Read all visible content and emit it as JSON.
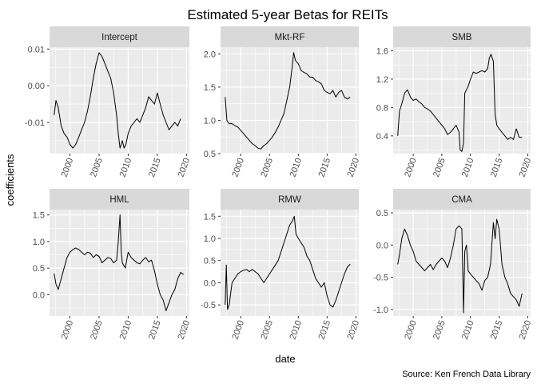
{
  "chart_title": "Estimated 5-year Betas for REITs",
  "xlabel": "date",
  "ylabel": "coefficients",
  "caption": "Source: Ken French Data Library",
  "colors": {
    "panel_bg": "#EBEBEB",
    "strip_bg": "#D9D9D9",
    "grid": "#FFFFFF",
    "line": "#000000",
    "tick_label": "#4D4D4D"
  },
  "chart_data": [
    {
      "type": "line",
      "facet": "Intercept",
      "xlim": [
        1996.5,
        2020.5
      ],
      "ylim": [
        -0.0185,
        0.0105
      ],
      "yticks": [
        0.01,
        0.0,
        -0.01
      ],
      "ytick_labels": [
        "0.01",
        "0.00",
        "-0.01"
      ],
      "xticks": [
        2000,
        2005,
        2010,
        2015,
        2020
      ],
      "xtick_labels": [
        "2000",
        "2005",
        "2010",
        "2015",
        "2020"
      ],
      "x": [
        1997.3,
        1997.6,
        1998,
        1998.5,
        1999,
        1999.5,
        2000,
        2000.5,
        2001,
        2001.5,
        2002,
        2002.5,
        2003,
        2003.5,
        2004,
        2004.5,
        2005,
        2005.5,
        2006,
        2006.5,
        2007,
        2007.5,
        2008,
        2008.3,
        2008.6,
        2009,
        2009.3,
        2009.6,
        2010,
        2010.5,
        2011,
        2011.5,
        2012,
        2012.5,
        2013,
        2013.5,
        2014,
        2014.5,
        2015,
        2015.5,
        2016,
        2016.5,
        2017,
        2017.5,
        2018,
        2018.5,
        2019
      ],
      "values": [
        -0.008,
        -0.004,
        -0.006,
        -0.011,
        -0.013,
        -0.014,
        -0.016,
        -0.017,
        -0.016,
        -0.014,
        -0.012,
        -0.01,
        -0.007,
        -0.003,
        0.002,
        0.006,
        0.009,
        0.008,
        0.006,
        0.004,
        0.002,
        -0.002,
        -0.008,
        -0.013,
        -0.017,
        -0.015,
        -0.017,
        -0.016,
        -0.013,
        -0.011,
        -0.01,
        -0.009,
        -0.01,
        -0.008,
        -0.006,
        -0.003,
        -0.004,
        -0.005,
        -0.002,
        -0.005,
        -0.008,
        -0.01,
        -0.012,
        -0.011,
        -0.01,
        -0.011,
        -0.009
      ]
    },
    {
      "type": "line",
      "facet": "Mkt-RF",
      "xlim": [
        1996.5,
        2020.5
      ],
      "ylim": [
        0.5,
        2.1
      ],
      "yticks": [
        0.5,
        1.0,
        1.5,
        2.0
      ],
      "ytick_labels": [
        "0.5",
        "1.0",
        "1.5",
        "2.0"
      ],
      "xticks": [
        2000,
        2005,
        2010,
        2015,
        2020
      ],
      "xtick_labels": [
        "2000",
        "2005",
        "2010",
        "2015",
        "2020"
      ],
      "x": [
        1997.3,
        1997.6,
        1998,
        1998.5,
        1999,
        1999.5,
        2000,
        2000.5,
        2001,
        2001.5,
        2002,
        2002.5,
        2003,
        2003.5,
        2004,
        2004.5,
        2005,
        2005.5,
        2006,
        2006.5,
        2007,
        2007.5,
        2008,
        2008.5,
        2009,
        2009.2,
        2009.5,
        2010,
        2010.5,
        2011,
        2011.5,
        2012,
        2012.5,
        2013,
        2013.5,
        2014,
        2014.5,
        2015,
        2015.5,
        2016,
        2016.5,
        2017,
        2017.5,
        2018,
        2018.5,
        2019
      ],
      "values": [
        1.35,
        1.0,
        0.95,
        0.95,
        0.92,
        0.9,
        0.85,
        0.8,
        0.75,
        0.7,
        0.65,
        0.62,
        0.58,
        0.57,
        0.62,
        0.65,
        0.7,
        0.75,
        0.82,
        0.9,
        1.0,
        1.1,
        1.3,
        1.5,
        1.85,
        2.02,
        1.9,
        1.85,
        1.75,
        1.72,
        1.7,
        1.65,
        1.65,
        1.6,
        1.58,
        1.55,
        1.45,
        1.42,
        1.4,
        1.45,
        1.35,
        1.42,
        1.45,
        1.35,
        1.32,
        1.35
      ]
    },
    {
      "type": "line",
      "facet": "SMB",
      "xlim": [
        1996.5,
        2020.5
      ],
      "ylim": [
        0.15,
        1.65
      ],
      "yticks": [
        0.4,
        0.8,
        1.2,
        1.6
      ],
      "ytick_labels": [
        "0.4",
        "0.8",
        "1.2",
        "1.6"
      ],
      "xticks": [
        2000,
        2005,
        2010,
        2015,
        2020
      ],
      "xtick_labels": [
        "2000",
        "2005",
        "2010",
        "2015",
        "2020"
      ],
      "x": [
        1997.3,
        1997.6,
        1998,
        1998.5,
        1999,
        1999.5,
        2000,
        2000.5,
        2001,
        2001.5,
        2002,
        2002.5,
        2003,
        2003.5,
        2004,
        2004.5,
        2005,
        2005.5,
        2006,
        2006.5,
        2007,
        2007.5,
        2008,
        2008.2,
        2008.5,
        2008.8,
        2009,
        2009.3,
        2009.6,
        2010,
        2010.5,
        2011,
        2011.5,
        2012,
        2012.5,
        2013,
        2013.3,
        2013.6,
        2014,
        2014.3,
        2014.6,
        2015,
        2015.5,
        2016,
        2016.5,
        2017,
        2017.5,
        2018,
        2018.5,
        2019
      ],
      "values": [
        0.4,
        0.75,
        0.85,
        1.0,
        1.05,
        0.95,
        0.9,
        0.92,
        0.88,
        0.85,
        0.8,
        0.78,
        0.75,
        0.7,
        0.65,
        0.6,
        0.55,
        0.5,
        0.42,
        0.45,
        0.5,
        0.55,
        0.45,
        0.2,
        0.18,
        0.3,
        1.0,
        1.05,
        1.1,
        1.2,
        1.3,
        1.28,
        1.3,
        1.32,
        1.3,
        1.35,
        1.5,
        1.55,
        1.45,
        0.7,
        0.55,
        0.5,
        0.45,
        0.4,
        0.35,
        0.38,
        0.35,
        0.5,
        0.38,
        0.38
      ]
    },
    {
      "type": "line",
      "facet": "HML",
      "xlim": [
        1996.5,
        2020.5
      ],
      "ylim": [
        -0.4,
        1.6
      ],
      "yticks": [
        0.0,
        0.5,
        1.0,
        1.5
      ],
      "ytick_labels": [
        "0.0",
        "0.5",
        "1.0",
        "1.5"
      ],
      "xticks": [
        2000,
        2005,
        2010,
        2015,
        2020
      ],
      "xtick_labels": [
        "2000",
        "2005",
        "2010",
        "2015",
        "2020"
      ],
      "x": [
        1997.3,
        1997.6,
        1998,
        1998.5,
        1999,
        1999.5,
        2000,
        2000.5,
        2001,
        2001.5,
        2002,
        2002.5,
        2003,
        2003.5,
        2004,
        2004.5,
        2005,
        2005.5,
        2006,
        2006.5,
        2007,
        2007.5,
        2008,
        2008.3,
        2008.6,
        2008.8,
        2009,
        2009.5,
        2010,
        2010.5,
        2011,
        2011.5,
        2012,
        2012.5,
        2013,
        2013.5,
        2014,
        2014.5,
        2015,
        2015.5,
        2016,
        2016.5,
        2017,
        2017.5,
        2018,
        2018.5,
        2019,
        2019.5
      ],
      "values": [
        0.4,
        0.2,
        0.1,
        0.3,
        0.5,
        0.7,
        0.8,
        0.85,
        0.88,
        0.85,
        0.8,
        0.75,
        0.8,
        0.78,
        0.7,
        0.75,
        0.72,
        0.6,
        0.65,
        0.7,
        0.68,
        0.6,
        0.65,
        1.0,
        1.5,
        0.8,
        0.6,
        0.5,
        0.8,
        0.7,
        0.65,
        0.6,
        0.58,
        0.65,
        0.7,
        0.62,
        0.65,
        0.45,
        0.2,
        0.0,
        -0.1,
        -0.3,
        -0.15,
        0.0,
        0.1,
        0.3,
        0.42,
        0.38
      ]
    },
    {
      "type": "line",
      "facet": "RMW",
      "xlim": [
        1996.5,
        2020.5
      ],
      "ylim": [
        -0.75,
        1.65
      ],
      "yticks": [
        -0.5,
        0.0,
        0.5,
        1.0,
        1.5
      ],
      "ytick_labels": [
        "-0.5",
        "0.0",
        "0.5",
        "1.0",
        "1.5"
      ],
      "xticks": [
        2000,
        2005,
        2010,
        2015,
        2020
      ],
      "xtick_labels": [
        "2000",
        "2005",
        "2010",
        "2015",
        "2020"
      ],
      "x": [
        1997.3,
        1997.5,
        1997.7,
        1998,
        1998.5,
        1999,
        1999.5,
        2000,
        2000.5,
        2001,
        2001.5,
        2002,
        2002.5,
        2003,
        2003.5,
        2004,
        2004.5,
        2005,
        2005.5,
        2006,
        2006.5,
        2007,
        2007.5,
        2008,
        2008.5,
        2009,
        2009.3,
        2009.6,
        2010,
        2010.5,
        2011,
        2011.5,
        2012,
        2012.5,
        2013,
        2013.5,
        2014,
        2014.5,
        2015,
        2015.5,
        2016,
        2016.5,
        2017,
        2017.5,
        2018,
        2018.5,
        2019
      ],
      "values": [
        -0.5,
        0.4,
        -0.6,
        -0.5,
        0.0,
        0.1,
        0.2,
        0.25,
        0.28,
        0.3,
        0.25,
        0.3,
        0.25,
        0.2,
        0.1,
        0.0,
        0.1,
        0.2,
        0.3,
        0.4,
        0.5,
        0.7,
        0.9,
        1.1,
        1.3,
        1.4,
        1.5,
        1.1,
        1.0,
        0.9,
        0.8,
        0.6,
        0.5,
        0.3,
        0.1,
        0.0,
        -0.1,
        0.0,
        -0.3,
        -0.5,
        -0.55,
        -0.4,
        -0.2,
        0.0,
        0.2,
        0.35,
        0.42
      ]
    },
    {
      "type": "line",
      "facet": "CMA",
      "xlim": [
        1996.5,
        2020.5
      ],
      "ylim": [
        -1.1,
        0.55
      ],
      "yticks": [
        0.5,
        0.0,
        -0.5,
        -1.0
      ],
      "ytick_labels": [
        "0.5",
        "0.0",
        "-0.5",
        "-1.0"
      ],
      "xticks": [
        2000,
        2005,
        2010,
        2015,
        2020
      ],
      "xtick_labels": [
        "2000",
        "2005",
        "2010",
        "2015",
        "2020"
      ],
      "x": [
        1997.3,
        1997.6,
        1998,
        1998.5,
        1999,
        1999.5,
        2000,
        2000.5,
        2001,
        2001.5,
        2002,
        2002.5,
        2003,
        2003.5,
        2004,
        2004.5,
        2005,
        2005.5,
        2006,
        2006.5,
        2007,
        2007.5,
        2008,
        2008.5,
        2008.8,
        2009,
        2009.3,
        2009.6,
        2010,
        2010.5,
        2011,
        2011.5,
        2012,
        2012.5,
        2013,
        2013.5,
        2014,
        2014.3,
        2014.6,
        2015,
        2015.5,
        2016,
        2016.5,
        2017,
        2017.5,
        2018,
        2018.5,
        2019
      ],
      "values": [
        -0.3,
        -0.15,
        0.1,
        0.25,
        0.15,
        0.0,
        -0.1,
        -0.25,
        -0.3,
        -0.35,
        -0.4,
        -0.35,
        -0.3,
        -0.38,
        -0.3,
        -0.25,
        -0.2,
        -0.25,
        -0.35,
        -0.2,
        0.0,
        0.25,
        0.3,
        0.25,
        -1.05,
        -0.1,
        0.0,
        -0.4,
        -0.45,
        -0.5,
        -0.55,
        -0.6,
        -0.7,
        -0.55,
        -0.5,
        -0.3,
        0.35,
        0.1,
        0.4,
        0.25,
        -0.3,
        -0.5,
        -0.6,
        -0.75,
        -0.8,
        -0.85,
        -0.95,
        -0.75
      ]
    }
  ]
}
